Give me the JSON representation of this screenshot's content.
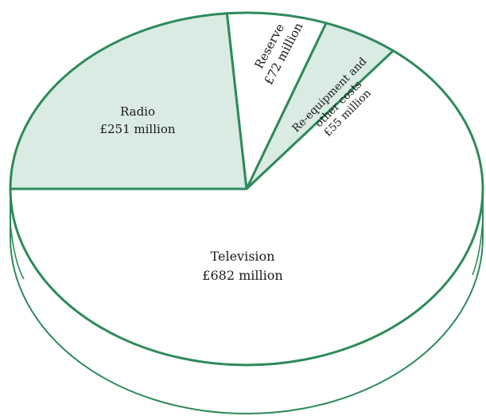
{
  "chart_data": {
    "type": "pie",
    "style": "3d-tilted",
    "title": "",
    "unit": "£ million",
    "slices": [
      {
        "label": "Television",
        "value_text": "£682 million",
        "value": 682,
        "fill": "#ffffff"
      },
      {
        "label": "Radio",
        "value_text": "£251 million",
        "value": 251,
        "fill": "#d9ebe3"
      },
      {
        "label": "Reserve",
        "value_text": "£72 million",
        "value": 72,
        "fill": "#ffffff"
      },
      {
        "label": "Re-equipment and other costs",
        "value_text": "£55 million",
        "value": 55,
        "fill": "#d9ebe3"
      }
    ]
  },
  "colors": {
    "outline": "#2e8a5a",
    "shaded_fill": "#d9ebe3",
    "plain_fill": "#ffffff",
    "text": "#1a1a1a"
  }
}
